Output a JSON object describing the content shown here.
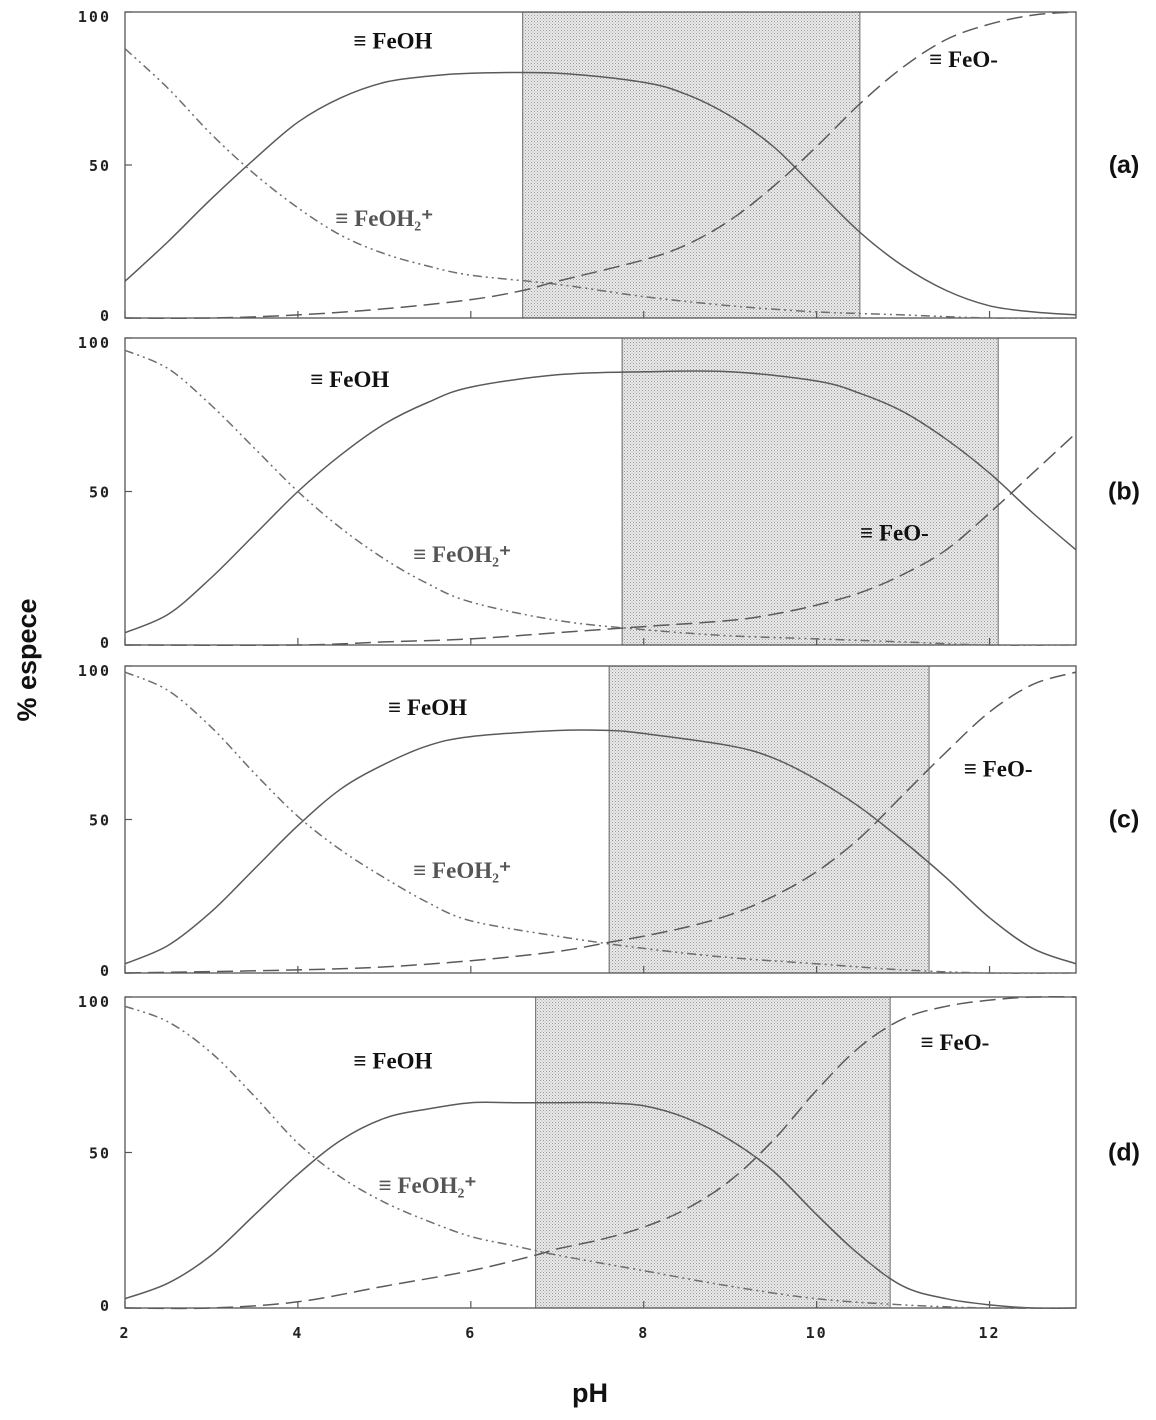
{
  "figure": {
    "xlabel": "pH",
    "ylabel": "% espece"
  },
  "chart_data": [
    {
      "type": "line",
      "panel_label": "(a)",
      "xlim": [
        2,
        13
      ],
      "ylim": [
        0,
        100
      ],
      "x_ticks": [
        "2",
        "4",
        "6",
        "8",
        "10",
        "12"
      ],
      "y_ticks": [
        "0",
        "50",
        "100"
      ],
      "shaded_region": [
        6.6,
        10.5
      ],
      "series": [
        {
          "label": "≡ FeOH",
          "style": "solid",
          "x": [
            2,
            2.5,
            3,
            3.5,
            4,
            4.5,
            5,
            5.5,
            6,
            7,
            8,
            8.5,
            9,
            9.5,
            10,
            10.5,
            11,
            11.5,
            12,
            12.5,
            13
          ],
          "y": [
            12,
            25,
            39,
            52,
            64,
            72,
            77,
            79,
            80,
            80,
            77,
            73,
            66,
            56,
            42,
            28,
            17,
            9,
            4,
            2,
            1
          ]
        },
        {
          "label": "≡ FeOH₂⁺",
          "style": "dash-dot",
          "x": [
            2,
            2.5,
            3,
            3.5,
            4,
            4.5,
            5,
            5.5,
            6,
            7,
            8,
            9,
            10,
            11,
            12,
            13
          ],
          "y": [
            88,
            75,
            60,
            47,
            36,
            27,
            21,
            17,
            14,
            11,
            7,
            4,
            2,
            1,
            0,
            0
          ]
        },
        {
          "label": "≡ FeO-",
          "style": "dashed",
          "x": [
            2,
            3,
            4,
            5,
            6,
            6.6,
            7,
            8,
            8.5,
            9,
            9.5,
            10,
            10.5,
            11,
            11.5,
            12,
            12.5,
            13
          ],
          "y": [
            0,
            0,
            1,
            3,
            6,
            9,
            12,
            19,
            24,
            32,
            43,
            56,
            70,
            82,
            91,
            96,
            99,
            100
          ]
        }
      ],
      "species_labels": [
        {
          "text": "≡ FeOH",
          "x": 5.1,
          "y": 88
        },
        {
          "text": "≡ FeOH₂⁺",
          "x": 5.0,
          "y": 30
        },
        {
          "text": "≡ FeO-",
          "x": 11.7,
          "y": 82
        }
      ]
    },
    {
      "type": "line",
      "panel_label": "(b)",
      "xlim": [
        2,
        13
      ],
      "ylim": [
        0,
        100
      ],
      "x_ticks": [
        "2",
        "4",
        "6",
        "8",
        "10",
        "12"
      ],
      "y_ticks": [
        "0",
        "50",
        "100"
      ],
      "shaded_region": [
        7.75,
        12.1
      ],
      "series": [
        {
          "label": "≡ FeOH",
          "style": "solid",
          "x": [
            2,
            2.5,
            3,
            3.5,
            4,
            4.5,
            5,
            5.5,
            6,
            7,
            8,
            9,
            10,
            10.5,
            11,
            11.5,
            12,
            12.5,
            13
          ],
          "y": [
            4,
            10,
            22,
            36,
            50,
            62,
            72,
            79,
            84,
            88,
            89,
            89,
            86,
            82,
            76,
            67,
            56,
            43,
            31
          ]
        },
        {
          "label": "≡ FeOH₂⁺",
          "style": "dash-dot",
          "x": [
            2,
            2.5,
            3,
            3.5,
            4,
            4.5,
            5,
            5.5,
            6,
            7,
            8,
            9,
            10,
            11,
            12,
            13
          ],
          "y": [
            96,
            90,
            78,
            64,
            50,
            38,
            28,
            20,
            14,
            8,
            5,
            3,
            2,
            1,
            0,
            0
          ]
        },
        {
          "label": "≡ FeO-",
          "style": "dashed",
          "x": [
            2,
            4,
            5,
            6,
            7,
            8,
            9,
            9.5,
            10,
            10.5,
            11,
            11.5,
            12,
            12.5,
            13
          ],
          "y": [
            0,
            0,
            1,
            2,
            4,
            6,
            8,
            10,
            13,
            17,
            23,
            31,
            43,
            56,
            69
          ]
        }
      ],
      "species_labels": [
        {
          "text": "≡ FeOH",
          "x": 4.6,
          "y": 84
        },
        {
          "text": "≡ FeOH₂⁺",
          "x": 5.9,
          "y": 27
        },
        {
          "text": "≡ FeO-",
          "x": 10.9,
          "y": 34
        }
      ]
    },
    {
      "type": "line",
      "panel_label": "(c)",
      "xlim": [
        2,
        13
      ],
      "ylim": [
        0,
        100
      ],
      "x_ticks": [
        "2",
        "4",
        "6",
        "8",
        "10",
        "12"
      ],
      "y_ticks": [
        "0",
        "50",
        "100"
      ],
      "shaded_region": [
        7.6,
        11.3
      ],
      "series": [
        {
          "label": "≡ FeOH",
          "style": "solid",
          "x": [
            2,
            2.5,
            3,
            3.5,
            4,
            4.5,
            5,
            5.5,
            6,
            7,
            7.6,
            8,
            9,
            9.5,
            10,
            10.5,
            11,
            11.5,
            12,
            12.5,
            13
          ],
          "y": [
            3,
            9,
            20,
            34,
            48,
            60,
            68,
            74,
            77,
            79,
            79,
            78,
            74,
            70,
            63,
            54,
            43,
            31,
            18,
            8,
            3
          ]
        },
        {
          "label": "≡ FeOH₂⁺",
          "style": "dash-dot",
          "x": [
            2,
            2.5,
            3,
            3.5,
            4,
            4.5,
            5,
            5.5,
            6,
            7,
            8,
            9,
            10,
            11,
            12,
            13
          ],
          "y": [
            98,
            92,
            80,
            65,
            51,
            40,
            31,
            23,
            17,
            12,
            8,
            5,
            3,
            1,
            0,
            0
          ]
        },
        {
          "label": "≡ FeO-",
          "style": "dashed",
          "x": [
            2,
            4,
            5,
            6,
            7,
            7.6,
            8,
            8.5,
            9,
            9.5,
            10,
            10.5,
            11,
            11.5,
            12,
            12.5,
            13
          ],
          "y": [
            0,
            1,
            2,
            4,
            7,
            10,
            12,
            15,
            19,
            25,
            33,
            44,
            58,
            72,
            85,
            94,
            98
          ]
        }
      ],
      "species_labels": [
        {
          "text": "≡ FeOH",
          "x": 5.5,
          "y": 84
        },
        {
          "text": "≡ FeOH₂⁺",
          "x": 5.9,
          "y": 31
        },
        {
          "text": "≡ FeO-",
          "x": 12.1,
          "y": 64
        }
      ]
    },
    {
      "type": "line",
      "panel_label": "(d)",
      "xlim": [
        2,
        13
      ],
      "ylim": [
        0,
        100
      ],
      "x_ticks": [
        "2",
        "4",
        "6",
        "8",
        "10",
        "12"
      ],
      "y_ticks": [
        "0",
        "50",
        "100"
      ],
      "shaded_region": [
        6.75,
        10.85
      ],
      "series": [
        {
          "label": "≡ FeOH",
          "style": "solid",
          "x": [
            2,
            2.5,
            3,
            3.5,
            4,
            4.5,
            5,
            5.5,
            6,
            6.5,
            7,
            7.5,
            8,
            8.5,
            9,
            9.5,
            10,
            10.5,
            11,
            11.5,
            12,
            12.5,
            13
          ],
          "y": [
            3,
            8,
            17,
            30,
            43,
            54,
            61,
            64,
            66,
            66,
            66,
            66,
            65,
            61,
            54,
            44,
            30,
            17,
            7,
            3,
            1,
            0,
            0
          ]
        },
        {
          "label": "≡ FeOH₂⁺",
          "style": "dash-dot",
          "x": [
            2,
            2.5,
            3,
            3.5,
            4,
            4.5,
            5,
            5.5,
            6,
            6.5,
            7,
            8,
            9,
            10,
            11,
            12,
            13
          ],
          "y": [
            97,
            92,
            82,
            68,
            53,
            42,
            34,
            28,
            23,
            20,
            17,
            12,
            7,
            3,
            1,
            0,
            0
          ]
        },
        {
          "label": "≡ FeO-",
          "style": "dashed",
          "x": [
            2,
            3,
            4,
            5,
            6,
            6.75,
            7,
            7.5,
            8,
            8.5,
            9,
            9.5,
            10,
            10.5,
            11,
            11.5,
            12,
            12.5,
            13
          ],
          "y": [
            0,
            0,
            2,
            7,
            12,
            17,
            19,
            22,
            26,
            32,
            41,
            54,
            70,
            84,
            93,
            97,
            99,
            100,
            100
          ]
        }
      ],
      "species_labels": [
        {
          "text": "≡ FeOH",
          "x": 5.1,
          "y": 77
        },
        {
          "text": "≡ FeOH₂⁺",
          "x": 5.5,
          "y": 37
        },
        {
          "text": "≡ FeO-",
          "x": 11.6,
          "y": 83
        }
      ]
    }
  ]
}
